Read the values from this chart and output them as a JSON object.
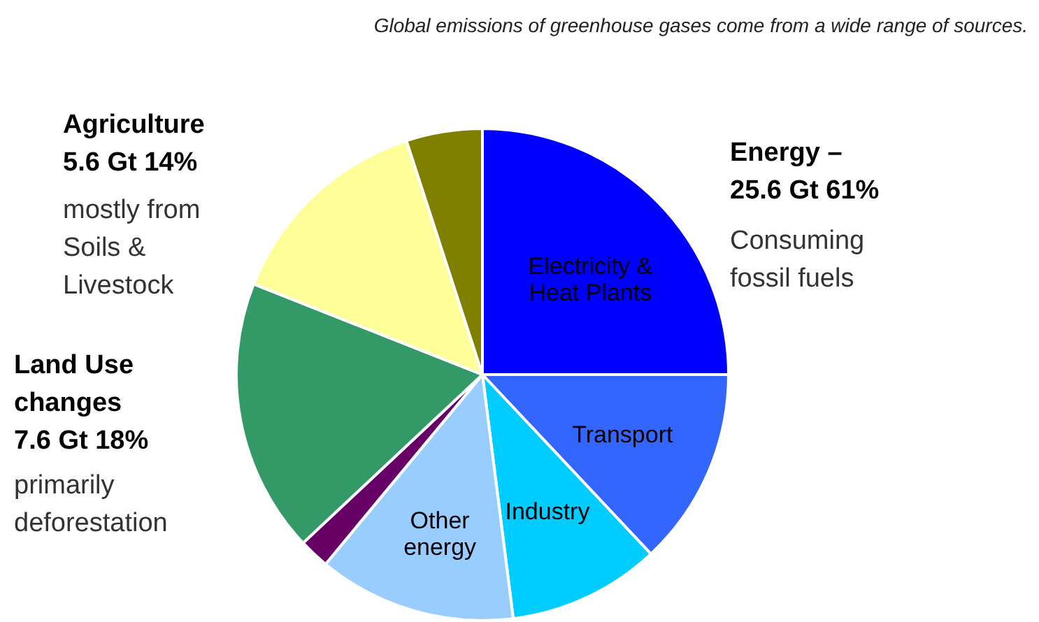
{
  "chart_data": {
    "type": "pie",
    "title": "Global emissions of greenhouse gases come from a wide range of sources.",
    "categories": [
      "Electricity &\nHeat Plants",
      "Transport",
      "Industry",
      "Other\nenergy",
      null,
      null,
      null,
      null
    ],
    "values": [
      25,
      13,
      10,
      13,
      2,
      18,
      14,
      5
    ],
    "colors": [
      "#0000ff",
      "#3366ff",
      "#00ccff",
      "#99ccff",
      "#660066",
      "#339966",
      "#ffff99",
      "#808000"
    ],
    "annotations": [
      "Energy –\n25.6 Gt 61%",
      "Consuming\nfossil fuels",
      "Agriculture\n5.6 Gt 14%",
      "mostly from\nSoils &\nLivestock",
      "Land Use\nchanges\n7.6 Gt 18%",
      "primarily\ndeforestation"
    ]
  }
}
